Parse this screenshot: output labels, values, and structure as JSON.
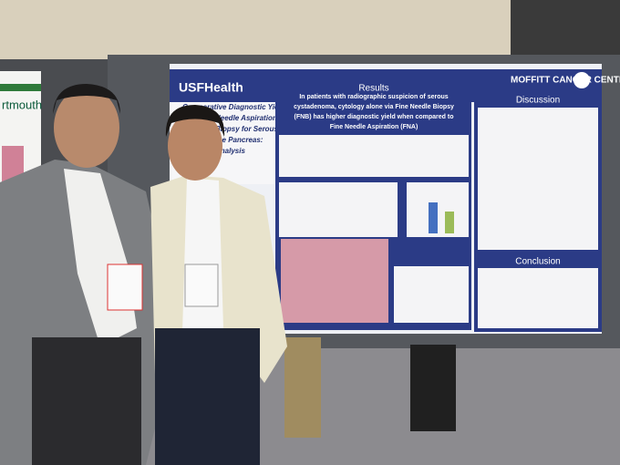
{
  "poster": {
    "header_logo": "USFHealth",
    "partner_logo": "MOFFITT CANCER CENTER",
    "title_fragments": [
      "Comparative Diagnostic Yield",
      "Needle Aspiration and",
      "Biopsy for Serous",
      "the Pancreas:",
      "Analysis"
    ],
    "results_heading": "Results",
    "headline_lines": [
      "In patients with radiographic suspicion of serous",
      "cystadenoma, cytology alone via Fine Needle Biopsy",
      "(FNB) has higher diagnostic yield when compared to",
      "Fine Needle Aspiration (FNA)"
    ],
    "discussion_heading": "Discussion",
    "conclusion_heading": "Conclusion"
  },
  "left_poster": {
    "fragment": "rtmouth"
  }
}
